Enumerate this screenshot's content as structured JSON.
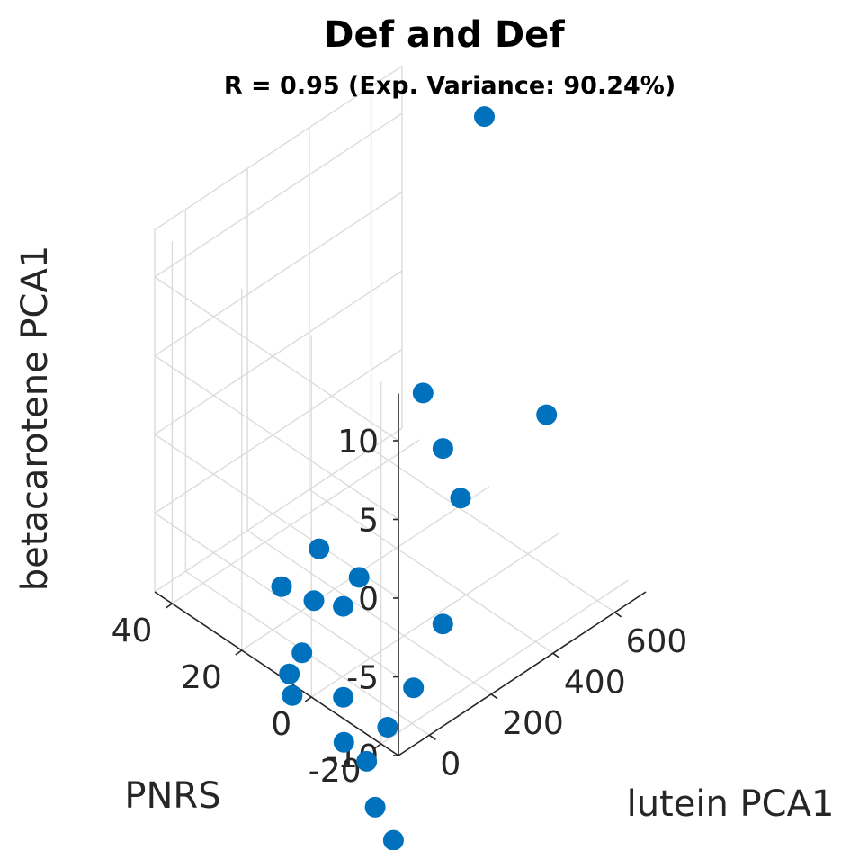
{
  "chart_data": {
    "type": "scatter",
    "title": "Def and Def",
    "subtitle": "R = 0.95 (Exp. Variance: 90.24%)",
    "xlabel": "lutein PCA1",
    "ylabel": "PNRS",
    "zlabel": "betacarotene PCA1",
    "x_ticks": [
      "0",
      "200",
      "400",
      "600"
    ],
    "y_ticks": [
      "-20",
      "0",
      "20",
      "40"
    ],
    "z_ticks": [
      "-10",
      "-5",
      "0",
      "5",
      "10"
    ],
    "xlim": [
      -100,
      700
    ],
    "ylim": [
      -25,
      45
    ],
    "zlim": [
      -10,
      13
    ],
    "grid": true,
    "marker_color": "#0072BD",
    "points": [
      {
        "x": 662,
        "y": 18,
        "z": 14.3
      },
      {
        "x": 548,
        "y": -10,
        "z": 1.0
      },
      {
        "x": 430,
        "y": 15,
        "z": 0.2
      },
      {
        "x": 404,
        "y": 7,
        "z": -1.8
      },
      {
        "x": 450,
        "y": 6,
        "z": -5.4
      },
      {
        "x": 280,
        "y": -4,
        "z": -9.7
      },
      {
        "x": 150,
        "y": 20,
        "z": -6.8
      },
      {
        "x": 77,
        "y": 15,
        "z": -8.4
      },
      {
        "x": 85,
        "y": 25,
        "z": -9.1
      },
      {
        "x": 172,
        "y": 15,
        "z": -10.0
      },
      {
        "x": 268,
        "y": 19,
        "z": -10.0
      },
      {
        "x": 72,
        "y": 18,
        "z": -12.1
      },
      {
        "x": 54,
        "y": 20,
        "z": -13.5
      },
      {
        "x": 230,
        "y": 0,
        "z": -13.7
      },
      {
        "x": 52,
        "y": 19,
        "z": -14.7
      },
      {
        "x": 127,
        "y": 11,
        "z": -14.6
      },
      {
        "x": 180,
        "y": 3,
        "z": -16.0
      },
      {
        "x": 95,
        "y": 8,
        "z": -16.6
      },
      {
        "x": 90,
        "y": 1,
        "z": -16.7
      },
      {
        "x": 50,
        "y": -5,
        "z": -18.2
      },
      {
        "x": 30,
        "y": -12,
        "z": -19.0
      }
    ]
  }
}
